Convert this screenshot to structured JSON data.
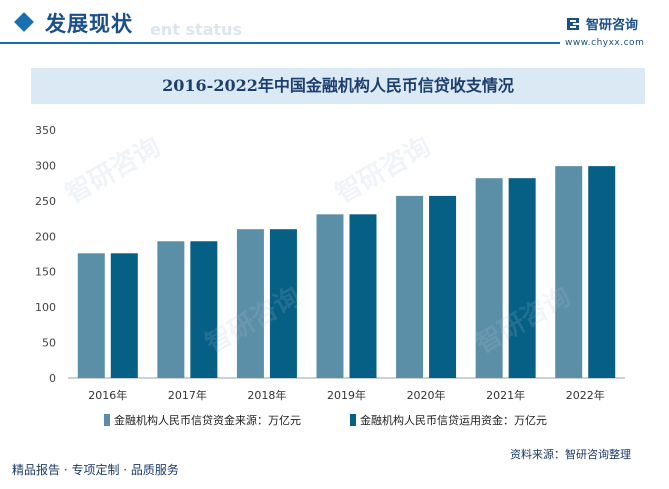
{
  "header": {
    "title": "发展现状",
    "subtitle_watermark": "ent status",
    "logo_name": "智研咨询",
    "logo_url": "www.chyxx.com"
  },
  "colors": {
    "series1": "#5b8fa8",
    "series2": "#065f84",
    "accent": "#1a6fb0"
  },
  "chart_data": {
    "type": "bar",
    "title": "2016-2022年中国金融机构人民币信贷收支情况",
    "categories": [
      "2016年",
      "2017年",
      "2018年",
      "2019年",
      "2020年",
      "2021年",
      "2022年"
    ],
    "series": [
      {
        "name": "金融机构人民币信贷资金来源：万亿元",
        "values": [
          176,
          193,
          210,
          231,
          257,
          282,
          299
        ]
      },
      {
        "name": "金融机构人民币信贷运用资金：万亿元",
        "values": [
          176,
          193,
          210,
          231,
          257,
          282,
          299
        ]
      }
    ],
    "ylim": [
      0,
      350
    ],
    "yticks": [
      0,
      50,
      100,
      150,
      200,
      250,
      300,
      350
    ],
    "grid": false,
    "legend": "bottom"
  },
  "footer": {
    "left": "精品报告 · 专项定制 · 品质服务",
    "right": "资料来源：智研咨询整理",
    "watermark": "智研咨询"
  }
}
